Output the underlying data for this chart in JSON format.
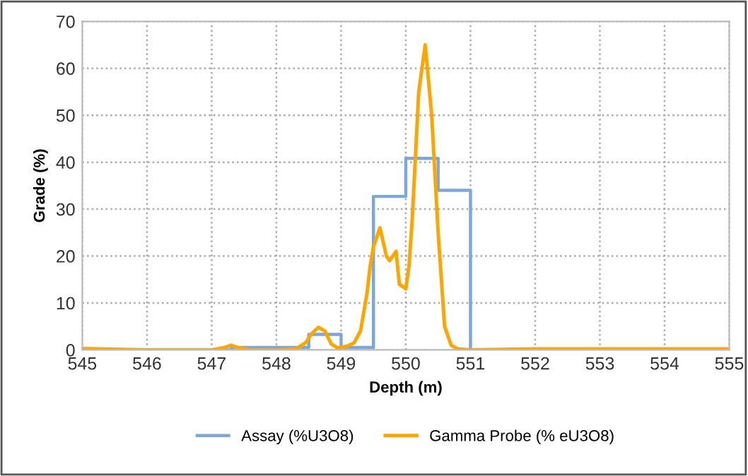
{
  "chart_data": {
    "type": "line",
    "xlabel": "Depth (m)",
    "ylabel": "Grade (%)",
    "xlim": [
      545,
      555
    ],
    "xticks": [
      545,
      546,
      547,
      548,
      549,
      550,
      551,
      552,
      553,
      554,
      555
    ],
    "ylim": [
      0,
      70
    ],
    "yticks": [
      0,
      10,
      20,
      30,
      40,
      50,
      60,
      70
    ],
    "grid": true,
    "legend": "bottom",
    "series": [
      {
        "name": "Assay (%U3O8)",
        "type": "step",
        "color": "#7ba7d9",
        "x": [
          545,
          547.3,
          548.5,
          549,
          549.5,
          550,
          550.5,
          551,
          555
        ],
        "values": [
          0,
          0.5,
          3.3,
          0.5,
          32.7,
          40.8,
          34,
          0,
          0
        ]
      },
      {
        "name": "Gamma Probe (% eU3O8)",
        "color": "#ffa500",
        "x": [
          545,
          546,
          547,
          547.2,
          547.3,
          547.4,
          547.6,
          548,
          548.3,
          548.45,
          548.55,
          548.65,
          548.75,
          548.85,
          548.95,
          549.1,
          549.2,
          549.3,
          549.4,
          549.45,
          549.5,
          549.6,
          549.7,
          549.75,
          549.85,
          549.9,
          550,
          550.05,
          550.1,
          550.2,
          550.3,
          550.4,
          550.5,
          550.6,
          550.7,
          550.8,
          551,
          552,
          553,
          555
        ],
        "values": [
          0.3,
          0,
          0,
          0.5,
          1,
          0.5,
          0,
          0,
          0.2,
          1.5,
          3.5,
          4.8,
          4,
          1.2,
          0.4,
          0.8,
          1.5,
          4,
          12,
          18,
          22,
          26,
          20,
          19,
          21,
          14,
          13,
          18,
          28,
          55,
          65,
          50,
          25,
          5,
          1,
          0.2,
          0,
          0.2,
          0.2,
          0.2
        ]
      }
    ]
  }
}
